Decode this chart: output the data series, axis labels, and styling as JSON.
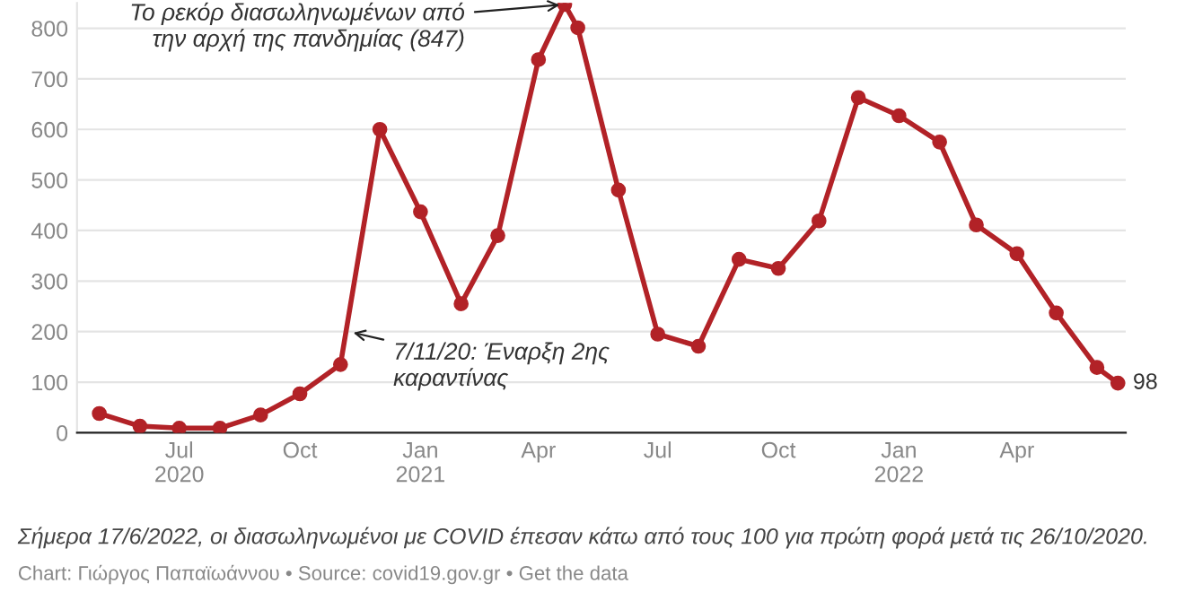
{
  "chart_data": {
    "type": "line",
    "x": [
      "2020-05-01",
      "2020-06-01",
      "2020-07-01",
      "2020-08-01",
      "2020-09-01",
      "2020-10-01",
      "2020-11-01",
      "2020-12-01",
      "2021-01-01",
      "2021-02-01",
      "2021-03-01",
      "2021-04-01",
      "2021-04-21",
      "2021-05-01",
      "2021-06-01",
      "2021-07-01",
      "2021-08-01",
      "2021-09-01",
      "2021-10-01",
      "2021-11-01",
      "2021-12-01",
      "2022-01-01",
      "2022-02-01",
      "2022-03-01",
      "2022-04-01",
      "2022-05-01",
      "2022-06-01",
      "2022-06-17"
    ],
    "series": [
      {
        "color": "#b22227",
        "values": [
          38,
          13,
          9,
          9,
          35,
          77,
          135,
          600,
          437,
          255,
          390,
          738,
          847,
          801,
          480,
          195,
          171,
          343,
          325,
          419,
          663,
          627,
          575,
          411,
          354,
          237,
          129,
          98
        ],
        "value_labels": [
          null,
          null,
          null,
          null,
          null,
          null,
          null,
          null,
          null,
          null,
          null,
          null,
          null,
          null,
          null,
          null,
          null,
          null,
          null,
          null,
          null,
          null,
          null,
          null,
          null,
          null,
          null,
          "98"
        ]
      }
    ],
    "xlim": [
      "2020-04-14",
      "2022-06-23"
    ],
    "xticks": [
      {
        "value": "2020-07-01",
        "label": "Jul\n2020"
      },
      {
        "value": "2020-10-01",
        "label": "Oct"
      },
      {
        "value": "2021-01-01",
        "label": "Jan\n2021"
      },
      {
        "value": "2021-04-01",
        "label": "Apr"
      },
      {
        "value": "2021-07-01",
        "label": "Jul"
      },
      {
        "value": "2021-10-01",
        "label": "Oct"
      },
      {
        "value": "2022-01-01",
        "label": "Jan\n2022"
      },
      {
        "value": "2022-04-01",
        "label": "Apr"
      }
    ],
    "ylim": [
      0,
      850
    ],
    "yticks": [
      0,
      100,
      200,
      300,
      400,
      500,
      600,
      700,
      800
    ],
    "grid": "y",
    "marker": "circle",
    "line_style": "solid",
    "annotations": [
      {
        "text": "Το ρεκόρ διασωληνωμένων από\nτην αρχή της πανδημίας (847)",
        "x": "2021-04-21",
        "y": 847
      },
      {
        "text": "7/11/20: Έναρξη 2ης\nκαραντίνας",
        "x": "2020-11-07",
        "y": 200
      },
      "Σήμερα 17/6/2022, οι διασωληνωμένοι με COVID έπεσαν κάτω από τους 100 για πρώτη φορά μετά τις 26/10/2020.",
      "Chart: Γιώργος Παπαϊωάννου • Source: covid19.gov.gr • Get the data"
    ]
  }
}
